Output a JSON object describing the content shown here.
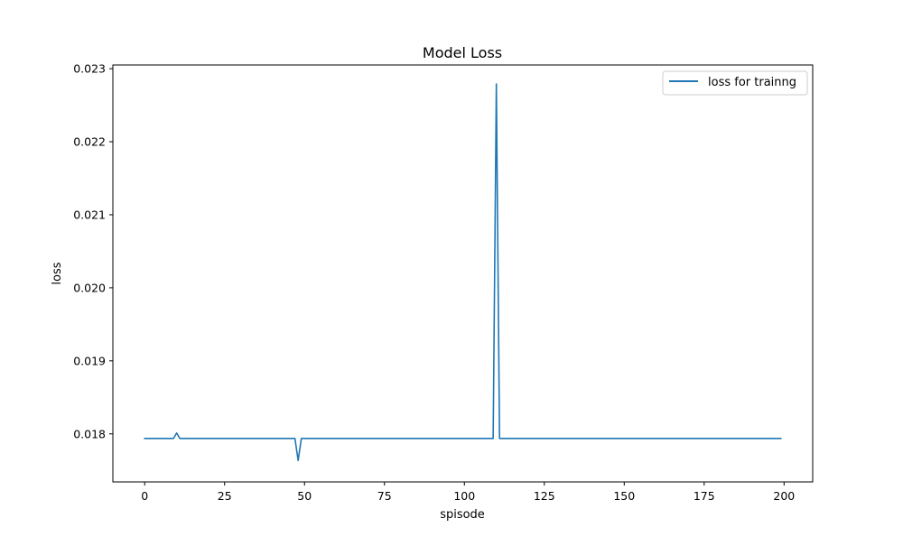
{
  "chart_data": {
    "type": "line",
    "title": "Model Loss",
    "xlabel": "spisode",
    "ylabel": "loss",
    "xlim": [
      -9.95,
      208.95
    ],
    "ylim": [
      0.017342,
      0.023051
    ],
    "xticks": [
      0,
      25,
      50,
      75,
      100,
      125,
      150,
      175,
      200
    ],
    "xtick_labels": [
      "0",
      "25",
      "50",
      "75",
      "100",
      "125",
      "150",
      "175",
      "200"
    ],
    "yticks": [
      0.018,
      0.019,
      0.02,
      0.021,
      0.022,
      0.023
    ],
    "ytick_labels": [
      "0.018",
      "0.019",
      "0.020",
      "0.021",
      "0.022",
      "0.023"
    ],
    "grid": false,
    "legend_position": "upper right",
    "series": [
      {
        "name": "loss for trainng",
        "color": "#1f77b4",
        "baseline": 0.017937,
        "x_start": 0,
        "x_end": 199,
        "points": [
          {
            "x": 0,
            "y": 0.017937
          },
          {
            "x": 9,
            "y": 0.017937
          },
          {
            "x": 10,
            "y": 0.018012
          },
          {
            "x": 11,
            "y": 0.017937
          },
          {
            "x": 47,
            "y": 0.017937
          },
          {
            "x": 48,
            "y": 0.017636
          },
          {
            "x": 49,
            "y": 0.017937
          },
          {
            "x": 109,
            "y": 0.017937
          },
          {
            "x": 110,
            "y": 0.022791
          },
          {
            "x": 111,
            "y": 0.017937
          },
          {
            "x": 199,
            "y": 0.017937
          }
        ]
      }
    ]
  }
}
